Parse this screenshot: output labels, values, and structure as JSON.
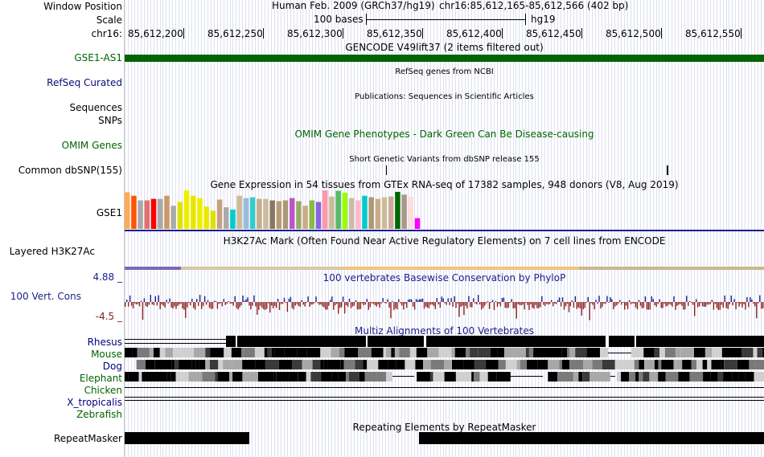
{
  "labels": {
    "window_position": "Window Position",
    "scale": "Scale",
    "chrom": "chr16:",
    "gencode_item": "GSE1-AS1",
    "refseq": "RefSeq Curated",
    "sequences": "Sequences",
    "snps": "SNPs",
    "omim": "OMIM Genes",
    "dbsnp": "Common dbSNP(155)",
    "gse1": "GSE1",
    "h3k27ac": "Layered H3K27Ac",
    "cons_max": "4.88 _",
    "cons": "100 Vert. Cons",
    "cons_min": "-4.5 _",
    "repeatmasker": "RepeatMasker"
  },
  "header": {
    "assembly": "Human Feb. 2009 (GRCh37/hg19)",
    "position": "chr16:85,612,165-85,612,566 (402 bp)",
    "scale_text": "100 bases",
    "db": "hg19"
  },
  "ruler": [
    "85,612,200",
    "85,612,250",
    "85,612,300",
    "85,612,350",
    "85,612,400",
    "85,612,450",
    "85,612,500",
    "85,612,550"
  ],
  "titles": {
    "gencode": "GENCODE V49lift37 (2 items filtered out)",
    "refseq": "RefSeq genes from NCBI",
    "publications": "Publications: Sequences in Scientific Articles",
    "omim": "OMIM Gene Phenotypes - Dark Green Can Be Disease-causing",
    "dbsnp": "Short Genetic Variants from dbSNP release 155",
    "gtex": "Gene Expression in 54 tissues from GTEx RNA-seq of 17382 samples, 948 donors (V8, Aug 2019)",
    "h3k27ac": "H3K27Ac Mark (Often Found Near Active Regulatory Elements) on 7 cell lines from ENCODE",
    "cons": "100 vertebrates Basewise Conservation by PhyloP",
    "multiz": "Multiz Alignments of 100 Vertebrates",
    "rmsk": "Repeating Elements by RepeatMasker"
  },
  "species": [
    {
      "name": "Rhesus",
      "color": "#000080"
    },
    {
      "name": "Mouse",
      "color": "#006400"
    },
    {
      "name": "Dog",
      "color": "#000080"
    },
    {
      "name": "Elephant",
      "color": "#006400"
    },
    {
      "name": "Chicken",
      "color": "#006400"
    },
    {
      "name": "X_tropicalis",
      "color": "#000080"
    },
    {
      "name": "Zebrafish",
      "color": "#006400"
    }
  ],
  "colors": {
    "gencode": "#006400",
    "refseq": "#0c0c78",
    "omim": "#006400",
    "cons_pos": "#1c1c8a",
    "cons_neg": "#8b2020",
    "gridline": "#dde0f0"
  },
  "gtex_colors": [
    "#FFAA55",
    "#FF5500",
    "#AAAAAA",
    "#E07070",
    "#FF0000",
    "#AAAAAA",
    "#CC9966",
    "#AAAAAA",
    "#E0E000",
    "#EEEE00",
    "#E6E600",
    "#EEEE00",
    "#E8E800",
    "#E0E000",
    "#C8A080",
    "#AAAAAA",
    "#00CCCC",
    "#CCBB99",
    "#99BBDD",
    "#33CCCC",
    "#C4AE8E",
    "#CCBB99",
    "#887766",
    "#BB9977",
    "#AA9977",
    "#BB55CC",
    "#99AA66",
    "#CCAA88",
    "#88BB44",
    "#8866DD",
    "#FF99AA",
    "#CCBB99",
    "#55BB66",
    "#99FF00",
    "#CCBBAA",
    "#FFBBCC",
    "#00CCCC",
    "#AA9977",
    "#CCAA88",
    "#CCBB99",
    "#CCAA99",
    "#006600",
    "#AA9988",
    "#FFDDDD",
    "#FF00FF"
  ],
  "gtex_values": [
    0.95,
    0.86,
    0.74,
    0.74,
    0.78,
    0.78,
    0.86,
    0.6,
    0.7,
    1.0,
    0.86,
    0.8,
    0.58,
    0.47,
    0.76,
    0.56,
    0.5,
    0.86,
    0.8,
    0.82,
    0.78,
    0.78,
    0.74,
    0.72,
    0.74,
    0.8,
    0.72,
    0.6,
    0.74,
    0.7,
    1.0,
    0.84,
    0.99,
    0.94,
    0.8,
    0.74,
    0.86,
    0.82,
    0.78,
    0.82,
    0.84,
    0.96,
    0.89,
    0.84,
    0.28
  ]
}
